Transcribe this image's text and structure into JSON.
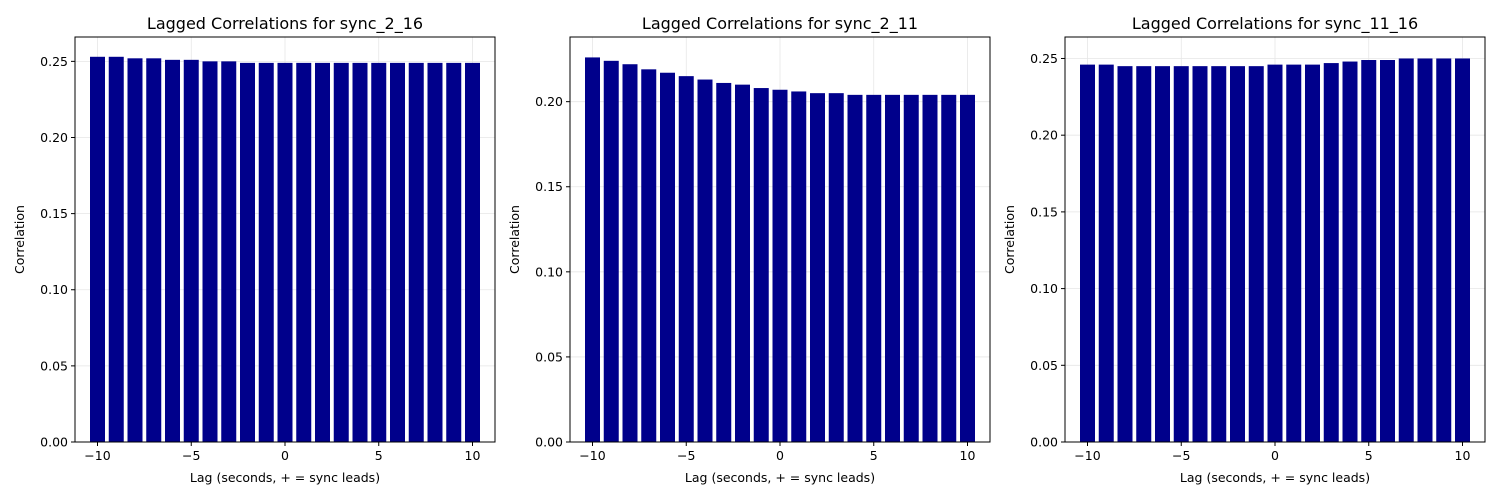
{
  "chart_data": [
    {
      "type": "bar",
      "title": "Lagged Correlations for sync_2_16",
      "xlabel": "Lag (seconds, + = sync leads)",
      "ylabel": "Correlation",
      "x": [
        -10,
        -9,
        -8,
        -7,
        -6,
        -5,
        -4,
        -3,
        -2,
        -1,
        0,
        1,
        2,
        3,
        4,
        5,
        6,
        7,
        8,
        9,
        10
      ],
      "values": [
        0.253,
        0.253,
        0.252,
        0.252,
        0.251,
        0.251,
        0.25,
        0.25,
        0.249,
        0.249,
        0.249,
        0.249,
        0.249,
        0.249,
        0.249,
        0.249,
        0.249,
        0.249,
        0.249,
        0.249,
        0.249
      ],
      "xlim": [
        -11.2,
        11.2
      ],
      "ylim": [
        0,
        0.266
      ],
      "xticks": [
        -10,
        -5,
        0,
        5,
        10
      ],
      "xtick_labels": [
        "−10",
        "−5",
        "0",
        "5",
        "10"
      ],
      "yticks": [
        0,
        0.05,
        0.1,
        0.15,
        0.2,
        0.25
      ],
      "ytick_labels": [
        "0.00",
        "0.05",
        "0.10",
        "0.15",
        "0.20",
        "0.25"
      ],
      "grid": true,
      "bar_color": "#00008b"
    },
    {
      "type": "bar",
      "title": "Lagged Correlations for sync_2_11",
      "xlabel": "Lag (seconds, + = sync leads)",
      "ylabel": "Correlation",
      "x": [
        -10,
        -9,
        -8,
        -7,
        -6,
        -5,
        -4,
        -3,
        -2,
        -1,
        0,
        1,
        2,
        3,
        4,
        5,
        6,
        7,
        8,
        9,
        10
      ],
      "values": [
        0.226,
        0.224,
        0.222,
        0.219,
        0.217,
        0.215,
        0.213,
        0.211,
        0.21,
        0.208,
        0.207,
        0.206,
        0.205,
        0.205,
        0.204,
        0.204,
        0.204,
        0.204,
        0.204,
        0.204,
        0.204
      ],
      "xlim": [
        -11.2,
        11.2
      ],
      "ylim": [
        0,
        0.238
      ],
      "xticks": [
        -10,
        -5,
        0,
        5,
        10
      ],
      "xtick_labels": [
        "−10",
        "−5",
        "0",
        "5",
        "10"
      ],
      "yticks": [
        0,
        0.05,
        0.1,
        0.15,
        0.2
      ],
      "ytick_labels": [
        "0.00",
        "0.05",
        "0.10",
        "0.15",
        "0.20"
      ],
      "grid": true,
      "bar_color": "#00008b"
    },
    {
      "type": "bar",
      "title": "Lagged Correlations for sync_11_16",
      "xlabel": "Lag (seconds, + = sync leads)",
      "ylabel": "Correlation",
      "x": [
        -10,
        -9,
        -8,
        -7,
        -6,
        -5,
        -4,
        -3,
        -2,
        -1,
        0,
        1,
        2,
        3,
        4,
        5,
        6,
        7,
        8,
        9,
        10
      ],
      "values": [
        0.246,
        0.246,
        0.245,
        0.245,
        0.245,
        0.245,
        0.245,
        0.245,
        0.245,
        0.245,
        0.246,
        0.246,
        0.246,
        0.247,
        0.248,
        0.249,
        0.249,
        0.25,
        0.25,
        0.25,
        0.25
      ],
      "xlim": [
        -11.2,
        11.2
      ],
      "ylim": [
        0,
        0.264
      ],
      "xticks": [
        -10,
        -5,
        0,
        5,
        10
      ],
      "xtick_labels": [
        "−10",
        "−5",
        "0",
        "5",
        "10"
      ],
      "yticks": [
        0,
        0.05,
        0.1,
        0.15,
        0.2,
        0.25
      ],
      "ytick_labels": [
        "0.00",
        "0.05",
        "0.10",
        "0.15",
        "0.20",
        "0.25"
      ],
      "grid": true,
      "bar_color": "#00008b"
    }
  ]
}
